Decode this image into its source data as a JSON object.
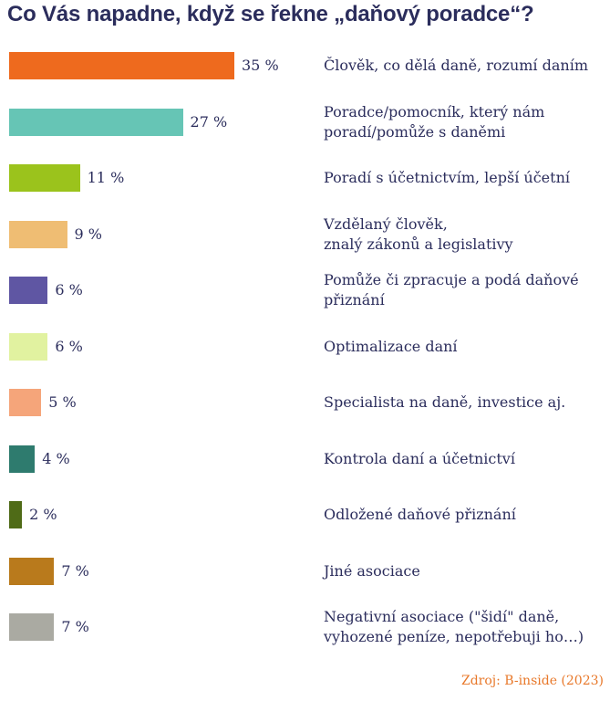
{
  "title": "Co Vás napadne, když se řekne „daňový poradce“?",
  "source": "Zdroj: B-inside (2023)",
  "chart_data": {
    "type": "bar",
    "orientation": "horizontal",
    "title": "Co Vás napadne, když se řekne „daňový poradce“?",
    "categories": [
      "Člověk, co dělá daně, rozumí daním",
      "Poradce/pomocník, který nám\nporadí/pomůže s daněmi",
      "Poradí s účetnictvím, lepší účetní",
      "Vzdělaný člověk,\nznalý zákonů a legislativy",
      "Pomůže či zpracuje a podá daňové\npřiznání",
      "Optimalizace daní",
      "Specialista na daně, investice aj.",
      "Kontrola daní a účetnictví",
      "Odložené daňové přiznání",
      "Jiné asociace",
      "Negativní asociace (\"šidí\" daně,\nvyhozené peníze, nepotřebuji ho…)"
    ],
    "values": [
      35,
      27,
      11,
      9,
      6,
      6,
      5,
      4,
      2,
      7,
      7
    ],
    "value_labels": [
      "35 %",
      "27 %",
      "11 %",
      "9 %",
      "6 %",
      "6 %",
      "5 %",
      "4 %",
      "2 %",
      "7 %",
      "7 %"
    ],
    "unit": "%",
    "colors": [
      "#ee6a1e",
      "#66c5b5",
      "#9bc31c",
      "#efbd73",
      "#5f56a3",
      "#e1f2a0",
      "#f5a57a",
      "#2e7b6e",
      "#4f6b17",
      "#b97a1c",
      "#aaaaa2"
    ],
    "grid": false,
    "legend": "none"
  }
}
